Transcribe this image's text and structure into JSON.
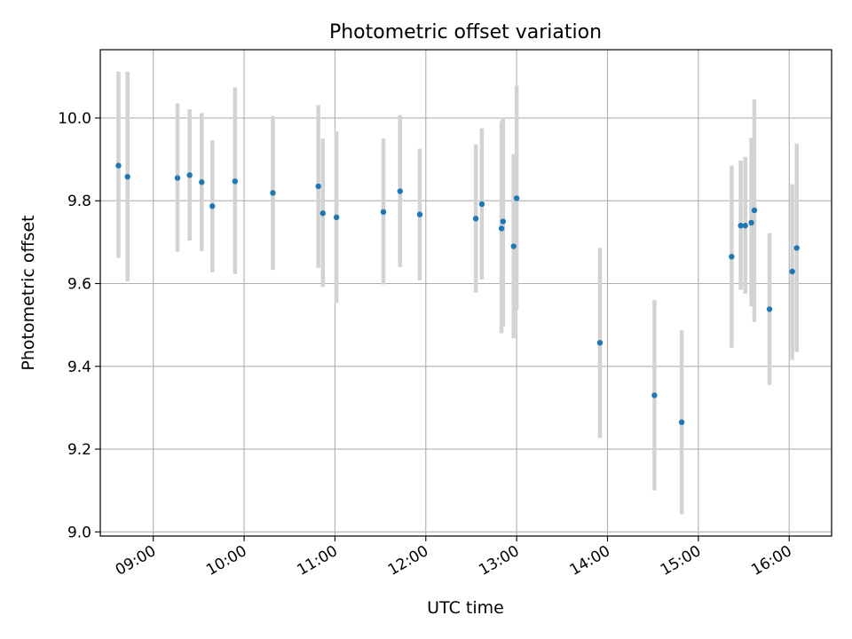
{
  "chart_data": {
    "type": "scatter",
    "title": "Photometric offset variation",
    "xlabel": "UTC time",
    "ylabel": "Photometric offset",
    "x_ticks": [
      "09:00",
      "10:00",
      "11:00",
      "12:00",
      "13:00",
      "14:00",
      "15:00",
      "16:00"
    ],
    "y_ticks": [
      "9.0",
      "9.2",
      "9.4",
      "9.6",
      "9.8",
      "10.0"
    ],
    "xlim": [
      "08:25",
      "16:28"
    ],
    "ylim": [
      8.99,
      10.165
    ],
    "grid": true,
    "point_color": "#1f77b4",
    "errorbar_color": "#d3d3d3",
    "series": [
      {
        "points": [
          {
            "x": "08:37",
            "y": 9.885,
            "ylow": 9.662,
            "yhigh": 10.112
          },
          {
            "x": "08:43",
            "y": 9.858,
            "ylow": 9.605,
            "yhigh": 10.112
          },
          {
            "x": "09:16",
            "y": 9.855,
            "ylow": 9.677,
            "yhigh": 10.035
          },
          {
            "x": "09:24",
            "y": 9.862,
            "ylow": 9.704,
            "yhigh": 10.021
          },
          {
            "x": "09:32",
            "y": 9.845,
            "ylow": 9.678,
            "yhigh": 10.012
          },
          {
            "x": "09:39",
            "y": 9.787,
            "ylow": 9.627,
            "yhigh": 9.946
          },
          {
            "x": "09:54",
            "y": 9.847,
            "ylow": 9.623,
            "yhigh": 10.074
          },
          {
            "x": "10:19",
            "y": 9.819,
            "ylow": 9.633,
            "yhigh": 10.005
          },
          {
            "x": "10:49",
            "y": 9.835,
            "ylow": 9.638,
            "yhigh": 10.031
          },
          {
            "x": "10:52",
            "y": 9.77,
            "ylow": 9.592,
            "yhigh": 9.95
          },
          {
            "x": "11:01",
            "y": 9.76,
            "ylow": 9.553,
            "yhigh": 9.968
          },
          {
            "x": "11:32",
            "y": 9.773,
            "ylow": 9.598,
            "yhigh": 9.95
          },
          {
            "x": "11:43",
            "y": 9.823,
            "ylow": 9.64,
            "yhigh": 10.007
          },
          {
            "x": "11:56",
            "y": 9.767,
            "ylow": 9.608,
            "yhigh": 9.926
          },
          {
            "x": "12:33",
            "y": 9.757,
            "ylow": 9.578,
            "yhigh": 9.936
          },
          {
            "x": "12:37",
            "y": 9.792,
            "ylow": 9.61,
            "yhigh": 9.975
          },
          {
            "x": "12:50",
            "y": 9.733,
            "ylow": 9.48,
            "yhigh": 9.992
          },
          {
            "x": "12:51",
            "y": 9.75,
            "ylow": 9.497,
            "yhigh": 10.001
          },
          {
            "x": "12:58",
            "y": 9.69,
            "ylow": 9.468,
            "yhigh": 9.913
          },
          {
            "x": "13:00",
            "y": 9.806,
            "ylow": 9.536,
            "yhigh": 10.078
          },
          {
            "x": "13:55",
            "y": 9.457,
            "ylow": 9.227,
            "yhigh": 9.686
          },
          {
            "x": "14:31",
            "y": 9.33,
            "ylow": 9.1,
            "yhigh": 9.56
          },
          {
            "x": "14:49",
            "y": 9.265,
            "ylow": 9.043,
            "yhigh": 9.487
          },
          {
            "x": "15:22",
            "y": 9.665,
            "ylow": 9.445,
            "yhigh": 9.885
          },
          {
            "x": "15:28",
            "y": 9.74,
            "ylow": 9.585,
            "yhigh": 9.897
          },
          {
            "x": "15:31",
            "y": 9.74,
            "ylow": 9.575,
            "yhigh": 9.906
          },
          {
            "x": "15:35",
            "y": 9.747,
            "ylow": 9.545,
            "yhigh": 9.952
          },
          {
            "x": "15:37",
            "y": 9.777,
            "ylow": 9.507,
            "yhigh": 10.045
          },
          {
            "x": "15:47",
            "y": 9.538,
            "ylow": 9.355,
            "yhigh": 9.722
          },
          {
            "x": "16:02",
            "y": 9.629,
            "ylow": 9.415,
            "yhigh": 9.84
          },
          {
            "x": "16:05",
            "y": 9.686,
            "ylow": 9.435,
            "yhigh": 9.938
          }
        ]
      }
    ]
  }
}
